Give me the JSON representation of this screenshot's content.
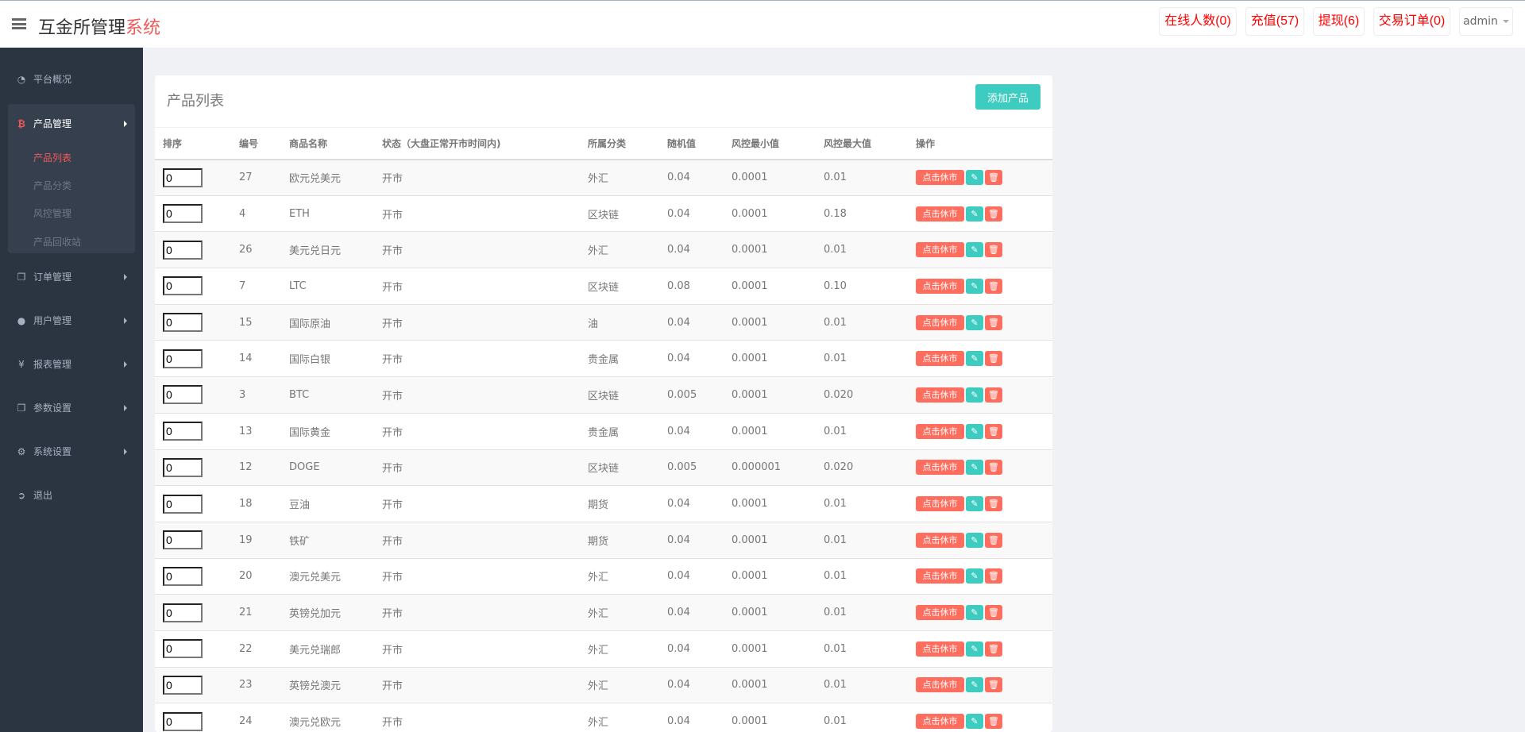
{
  "header": {
    "title_main": "互金所管理",
    "title_accent": "系统",
    "buttons": [
      {
        "label": "在线人数(0)"
      },
      {
        "label": "充值(57)"
      },
      {
        "label": "提现(6)"
      },
      {
        "label": "交易订单(0)"
      }
    ],
    "user": "admin"
  },
  "sidebar": {
    "items": [
      {
        "label": "平台概况",
        "icon": "dashboard-icon"
      },
      {
        "label": "产品管理",
        "icon": "bitcoin-icon"
      },
      {
        "label": "订单管理",
        "icon": "copy-icon"
      },
      {
        "label": "用户管理",
        "icon": "user-icon"
      },
      {
        "label": "报表管理",
        "icon": "yen-icon"
      },
      {
        "label": "参数设置",
        "icon": "copy-icon"
      },
      {
        "label": "系统设置",
        "icon": "gears-icon"
      },
      {
        "label": "退出",
        "icon": "sign-out-icon"
      }
    ],
    "submenu": [
      {
        "label": "产品列表",
        "active": true
      },
      {
        "label": "产品分类"
      },
      {
        "label": "风控管理"
      },
      {
        "label": "产品回收站"
      }
    ]
  },
  "main": {
    "title": "产品列表",
    "add_label": "添加产品",
    "columns": [
      "排序",
      "编号",
      "商品名称",
      "状态（大盘正常开市时间内)",
      "所属分类",
      "随机值",
      "风控最小值",
      "风控最大值",
      "操作"
    ],
    "close_label": "点击休市",
    "rows": [
      {
        "sort": "0",
        "id": "27",
        "name": "欧元兑美元",
        "status": "开市",
        "cat": "外汇",
        "rand": "0.04",
        "min": "0.0001",
        "max": "0.01"
      },
      {
        "sort": "0",
        "id": "4",
        "name": "ETH",
        "status": "开市",
        "cat": "区块链",
        "rand": "0.04",
        "min": "0.0001",
        "max": "0.18"
      },
      {
        "sort": "0",
        "id": "26",
        "name": "美元兑日元",
        "status": "开市",
        "cat": "外汇",
        "rand": "0.04",
        "min": "0.0001",
        "max": "0.01"
      },
      {
        "sort": "0",
        "id": "7",
        "name": "LTC",
        "status": "开市",
        "cat": "区块链",
        "rand": "0.08",
        "min": "0.0001",
        "max": "0.10"
      },
      {
        "sort": "0",
        "id": "15",
        "name": "国际原油",
        "status": "开市",
        "cat": "油",
        "rand": "0.04",
        "min": "0.0001",
        "max": "0.01"
      },
      {
        "sort": "0",
        "id": "14",
        "name": "国际白银",
        "status": "开市",
        "cat": "贵金属",
        "rand": "0.04",
        "min": "0.0001",
        "max": "0.01"
      },
      {
        "sort": "0",
        "id": "3",
        "name": "BTC",
        "status": "开市",
        "cat": "区块链",
        "rand": "0.005",
        "min": "0.0001",
        "max": "0.020"
      },
      {
        "sort": "0",
        "id": "13",
        "name": "国际黄金",
        "status": "开市",
        "cat": "贵金属",
        "rand": "0.04",
        "min": "0.0001",
        "max": "0.01"
      },
      {
        "sort": "0",
        "id": "12",
        "name": "DOGE",
        "status": "开市",
        "cat": "区块链",
        "rand": "0.005",
        "min": "0.000001",
        "max": "0.020"
      },
      {
        "sort": "0",
        "id": "18",
        "name": "豆油",
        "status": "开市",
        "cat": "期货",
        "rand": "0.04",
        "min": "0.0001",
        "max": "0.01"
      },
      {
        "sort": "0",
        "id": "19",
        "name": "铁矿",
        "status": "开市",
        "cat": "期货",
        "rand": "0.04",
        "min": "0.0001",
        "max": "0.01"
      },
      {
        "sort": "0",
        "id": "20",
        "name": "澳元兑美元",
        "status": "开市",
        "cat": "外汇",
        "rand": "0.04",
        "min": "0.0001",
        "max": "0.01"
      },
      {
        "sort": "0",
        "id": "21",
        "name": "英镑兑加元",
        "status": "开市",
        "cat": "外汇",
        "rand": "0.04",
        "min": "0.0001",
        "max": "0.01"
      },
      {
        "sort": "0",
        "id": "22",
        "name": "美元兑瑞郎",
        "status": "开市",
        "cat": "外汇",
        "rand": "0.04",
        "min": "0.0001",
        "max": "0.01"
      },
      {
        "sort": "0",
        "id": "23",
        "name": "英镑兑澳元",
        "status": "开市",
        "cat": "外汇",
        "rand": "0.04",
        "min": "0.0001",
        "max": "0.01"
      },
      {
        "sort": "0",
        "id": "24",
        "name": "澳元兑欧元",
        "status": "开市",
        "cat": "外汇",
        "rand": "0.04",
        "min": "0.0001",
        "max": "0.01"
      }
    ]
  },
  "colors": {
    "accent": "#f0595a",
    "teal": "#3fccc0",
    "danger": "#ff6d5e",
    "sidebar": "#2b3542"
  }
}
